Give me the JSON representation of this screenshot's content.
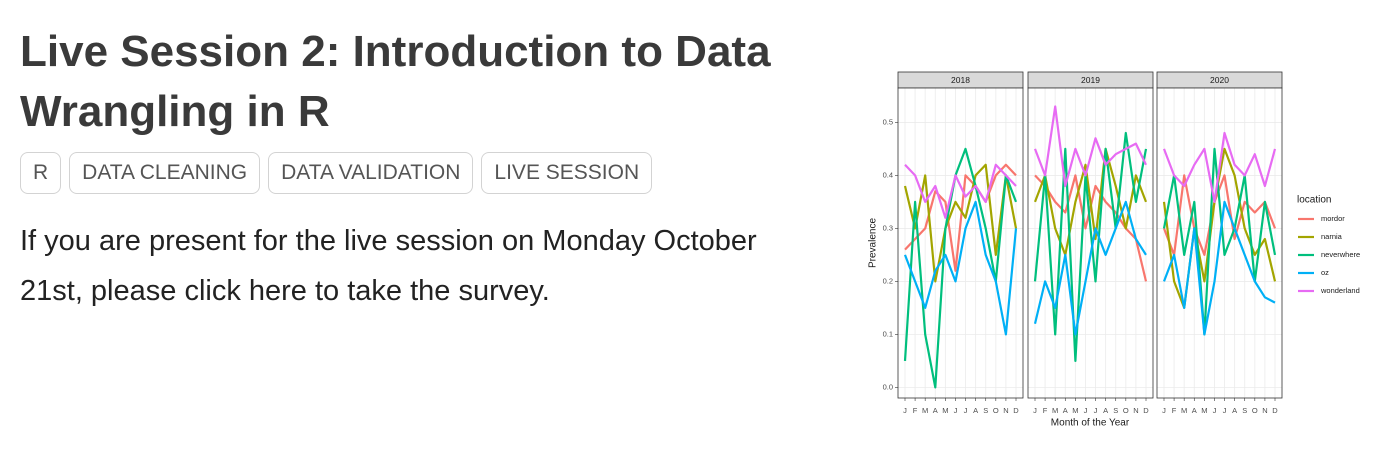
{
  "header": {
    "title": "Live Session 2: Introduction to Data Wrangling in R"
  },
  "tags": [
    "R",
    "DATA CLEANING",
    "DATA VALIDATION",
    "LIVE SESSION"
  ],
  "paragraph": "If you are present for the live session on Monday October 21st, please click here to take the survey.",
  "chart_data": {
    "type": "line",
    "x_label": "Month of the Year",
    "y_label": "Prevalence",
    "legend_title": "location",
    "categories": [
      "J",
      "F",
      "M",
      "A",
      "M",
      "J",
      "J",
      "A",
      "S",
      "O",
      "N",
      "D"
    ],
    "ylim": [
      -0.02,
      0.565
    ],
    "yticks": [
      {
        "value": 0,
        "label": "0.0"
      },
      0.1,
      0.2,
      0.3,
      0.4,
      0.5
    ],
    "grid": true,
    "series": [
      {
        "name": "mordor",
        "color": "#f8766d"
      },
      {
        "name": "narnia",
        "color": "#a3a500"
      },
      {
        "name": "neverwhere",
        "color": "#00bf7d"
      },
      {
        "name": "oz",
        "color": "#00b0f6"
      },
      {
        "name": "wonderland",
        "color": "#e76bf3"
      }
    ],
    "facets": [
      {
        "title": "2018",
        "values": [
          [
            0.26,
            0.28,
            0.3,
            0.37,
            0.35,
            0.22,
            0.4,
            0.38,
            0.35,
            0.4,
            0.42,
            0.4
          ],
          [
            0.38,
            0.3,
            0.4,
            0.2,
            0.3,
            0.35,
            0.32,
            0.4,
            0.42,
            0.25,
            0.4,
            0.3
          ],
          [
            0.05,
            0.35,
            0.1,
            0.0,
            0.3,
            0.4,
            0.45,
            0.38,
            0.3,
            0.2,
            0.4,
            0.35
          ],
          [
            0.25,
            0.2,
            0.15,
            0.22,
            0.25,
            0.2,
            0.3,
            0.35,
            0.25,
            0.2,
            0.1,
            0.3
          ],
          [
            0.42,
            0.4,
            0.35,
            0.38,
            0.32,
            0.4,
            0.36,
            0.38,
            0.35,
            0.42,
            0.4,
            0.38
          ]
        ]
      },
      {
        "title": "2019",
        "values": [
          [
            0.4,
            0.38,
            0.35,
            0.33,
            0.4,
            0.3,
            0.38,
            0.35,
            0.33,
            0.3,
            0.28,
            0.2
          ],
          [
            0.35,
            0.4,
            0.3,
            0.25,
            0.35,
            0.42,
            0.28,
            0.45,
            0.38,
            0.3,
            0.4,
            0.35
          ],
          [
            0.2,
            0.4,
            0.1,
            0.45,
            0.05,
            0.4,
            0.2,
            0.45,
            0.3,
            0.48,
            0.35,
            0.45
          ],
          [
            0.12,
            0.2,
            0.15,
            0.25,
            0.1,
            0.2,
            0.3,
            0.25,
            0.3,
            0.35,
            0.28,
            0.25
          ],
          [
            0.45,
            0.4,
            0.53,
            0.38,
            0.45,
            0.4,
            0.47,
            0.42,
            0.44,
            0.45,
            0.46,
            0.42
          ]
        ]
      },
      {
        "title": "2020",
        "values": [
          [
            0.3,
            0.25,
            0.4,
            0.3,
            0.25,
            0.35,
            0.4,
            0.28,
            0.35,
            0.33,
            0.35,
            0.3
          ],
          [
            0.35,
            0.2,
            0.15,
            0.3,
            0.2,
            0.35,
            0.45,
            0.4,
            0.3,
            0.25,
            0.28,
            0.2
          ],
          [
            0.3,
            0.4,
            0.25,
            0.35,
            0.1,
            0.45,
            0.25,
            0.3,
            0.4,
            0.2,
            0.35,
            0.25
          ],
          [
            0.2,
            0.25,
            0.15,
            0.3,
            0.1,
            0.2,
            0.35,
            0.3,
            0.25,
            0.2,
            0.17,
            0.16
          ],
          [
            0.45,
            0.4,
            0.38,
            0.42,
            0.45,
            0.35,
            0.48,
            0.42,
            0.4,
            0.44,
            0.38,
            0.45
          ]
        ]
      }
    ]
  }
}
